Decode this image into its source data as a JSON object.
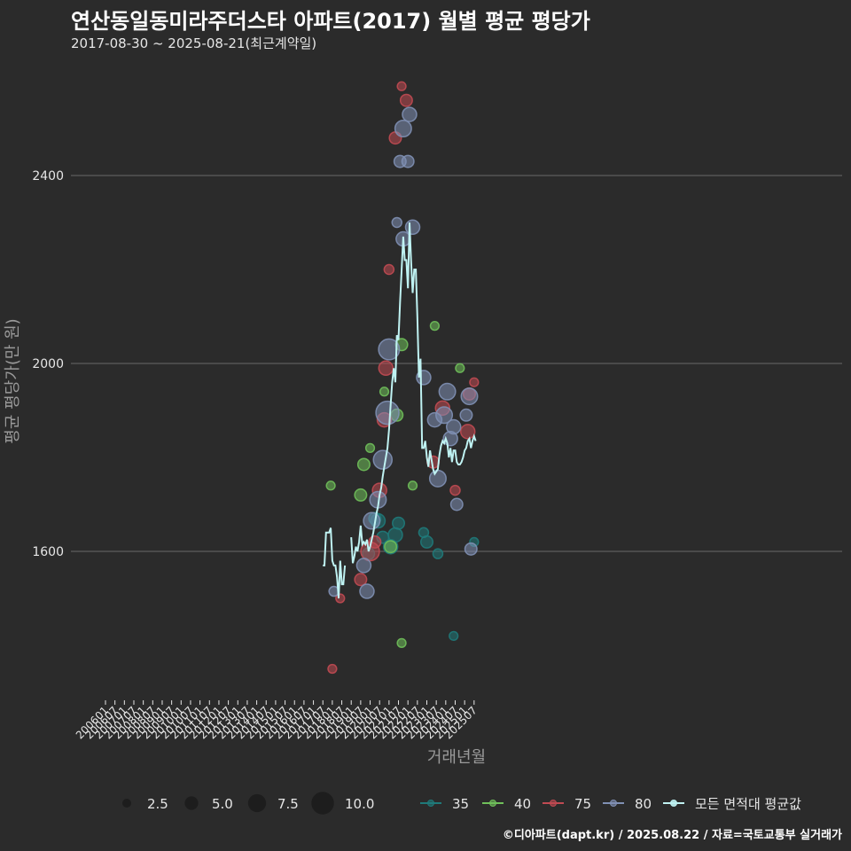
{
  "header": {
    "title": "연산동일동미라주더스타 아파트(2017) 월별 평균 평당가",
    "subtitle": "2017-08-30 ~ 2025-08-21(최근계약일)"
  },
  "footer": {
    "credit": "©디아파트(dapt.kr) / 2025.08.22 / 자료=국토교통부 실거래가"
  },
  "colors": {
    "background": "#2b2b2b",
    "grid": "#6a6a6a",
    "text": "#e6e6e6",
    "axis_title": "#9a9a9a",
    "series": {
      "35": "#1f7a7a",
      "40": "#6fbf5a",
      "75": "#c04a52",
      "80": "#8090b4",
      "avg": "#bff2f2"
    }
  },
  "chart_data": {
    "type": "line",
    "title": "연산동일동미라주더스타 아파트(2017) 월별 평균 평당가",
    "xlabel": "거래년월",
    "ylabel": "평균 평당가(만 원)",
    "ylim": [
      1285,
      2600
    ],
    "yticks": [
      1600,
      2000,
      2400
    ],
    "grid": true,
    "categories": [
      "200601",
      "200607",
      "200701",
      "200707",
      "200801",
      "200807",
      "200901",
      "200907",
      "201001",
      "201007",
      "201101",
      "201107",
      "201201",
      "201207",
      "201301",
      "201307",
      "201401",
      "201407",
      "201501",
      "201507",
      "201601",
      "201607",
      "201701",
      "201707",
      "201801",
      "201807",
      "201901",
      "201907",
      "202001",
      "202007",
      "202101",
      "202107",
      "202201",
      "202207",
      "202301",
      "202307",
      "202401",
      "202407",
      "202501",
      "202507"
    ],
    "legend": {
      "size_title": "",
      "sizes": [
        2.5,
        5.0,
        7.5,
        10.0
      ],
      "size_labels": [
        "2.5",
        "5.0",
        "7.5",
        "10.0"
      ],
      "series": [
        {
          "key": "35",
          "label": "35"
        },
        {
          "key": "40",
          "label": "40"
        },
        {
          "key": "75",
          "label": "75"
        },
        {
          "key": "80",
          "label": "80"
        },
        {
          "key": "avg",
          "label": "모든 면적대 평균값"
        }
      ],
      "position": "bottom"
    },
    "average_line": {
      "name": "모든 면적대 평균값",
      "segments": [
        {
          "x": [
            "2017-07",
            "2017-08",
            "2017-09",
            "2017-10",
            "2017-11",
            "2017-12",
            "2018-01",
            "2018-02",
            "2018-03",
            "2018-04",
            "2018-05",
            "2018-06",
            "2018-07",
            "2018-08",
            "2018-09"
          ],
          "y": [
            1570,
            1570,
            1640,
            1640,
            1640,
            1650,
            1580,
            1570,
            1570,
            1545,
            1500,
            1580,
            1530,
            1530,
            1570
          ]
        },
        {
          "x": [
            "2019-01",
            "2019-02",
            "2019-03",
            "2019-04",
            "2019-05",
            "2019-06",
            "2019-07",
            "2019-08",
            "2019-09",
            "2019-10",
            "2019-11",
            "2019-12",
            "2020-01",
            "2020-02",
            "2020-03",
            "2020-04",
            "2020-05",
            "2020-06",
            "2020-07",
            "2020-08",
            "2020-09",
            "2020-10",
            "2020-11",
            "2020-12",
            "2021-01",
            "2021-02",
            "2021-03",
            "2021-04",
            "2021-05",
            "2021-06",
            "2021-07",
            "2021-08",
            "2021-09",
            "2021-10",
            "2021-11",
            "2021-12",
            "2022-01",
            "2022-02",
            "2022-03",
            "2022-04",
            "2022-05",
            "2022-06",
            "2022-07",
            "2022-08",
            "2022-09",
            "2022-10",
            "2022-11",
            "2022-12",
            "2023-01",
            "2023-02",
            "2023-03",
            "2023-04",
            "2023-05",
            "2023-06",
            "2023-07",
            "2023-08",
            "2023-09",
            "2023-10",
            "2023-11",
            "2023-12",
            "2024-01",
            "2024-02",
            "2024-03",
            "2024-04",
            "2024-05",
            "2024-06",
            "2024-07",
            "2024-08",
            "2024-09",
            "2024-10",
            "2024-11",
            "2024-12",
            "2025-01",
            "2025-02",
            "2025-03",
            "2025-04",
            "2025-05",
            "2025-06",
            "2025-07",
            "2025-08"
          ],
          "y": [
            1630,
            1575,
            1590,
            1610,
            1600,
            1620,
            1655,
            1615,
            1620,
            1615,
            1625,
            1600,
            1610,
            1625,
            1640,
            1660,
            1680,
            1695,
            1720,
            1735,
            1760,
            1780,
            1800,
            1820,
            1860,
            1910,
            1960,
            1990,
            1960,
            2060,
            2050,
            2130,
            2200,
            2270,
            2220,
            2220,
            2160,
            2300,
            2220,
            2150,
            2200,
            2200,
            2100,
            1970,
            2010,
            1820,
            1820,
            1835,
            1800,
            1780,
            1815,
            1795,
            1775,
            1765,
            1770,
            1775,
            1805,
            1825,
            1835,
            1830,
            1840,
            1830,
            1800,
            1820,
            1790,
            1815,
            1815,
            1790,
            1785,
            1785,
            1790,
            1800,
            1815,
            1820,
            1835,
            1840,
            1820,
            1835,
            1845,
            1835
          ]
        }
      ]
    },
    "scatter_series": [
      {
        "name": "35",
        "points": [
          {
            "x": "2019-12",
            "y": 1595,
            "size": 3
          },
          {
            "x": "2020-04",
            "y": 1670,
            "size": 3
          },
          {
            "x": "2020-06",
            "y": 1665,
            "size": 4
          },
          {
            "x": "2020-09",
            "y": 1630,
            "size": 3
          },
          {
            "x": "2021-02",
            "y": 1610,
            "size": 4
          },
          {
            "x": "2021-05",
            "y": 1635,
            "size": 4
          },
          {
            "x": "2021-07",
            "y": 1660,
            "size": 3
          },
          {
            "x": "2022-11",
            "y": 1640,
            "size": 2
          },
          {
            "x": "2023-01",
            "y": 1620,
            "size": 3
          },
          {
            "x": "2023-08",
            "y": 1595,
            "size": 2
          },
          {
            "x": "2024-06",
            "y": 1420,
            "size": 1.5
          },
          {
            "x": "2025-07",
            "y": 1620,
            "size": 1.5
          }
        ]
      },
      {
        "name": "40",
        "points": [
          {
            "x": "2017-12",
            "y": 1740,
            "size": 1.5
          },
          {
            "x": "2019-09",
            "y": 1785,
            "size": 3
          },
          {
            "x": "2019-07",
            "y": 1720,
            "size": 3
          },
          {
            "x": "2020-01",
            "y": 1820,
            "size": 1.5
          },
          {
            "x": "2020-10",
            "y": 1940,
            "size": 1.5
          },
          {
            "x": "2021-02",
            "y": 1610,
            "size": 3
          },
          {
            "x": "2021-06",
            "y": 1890,
            "size": 3
          },
          {
            "x": "2021-09",
            "y": 2040,
            "size": 3
          },
          {
            "x": "2021-09",
            "y": 1405,
            "size": 1.5
          },
          {
            "x": "2022-04",
            "y": 1740,
            "size": 1.5
          },
          {
            "x": "2023-06",
            "y": 2080,
            "size": 1.5
          },
          {
            "x": "2024-10",
            "y": 1990,
            "size": 1.5
          }
        ]
      },
      {
        "name": "75",
        "points": [
          {
            "x": "2018-01",
            "y": 1350,
            "size": 1.5
          },
          {
            "x": "2018-06",
            "y": 1500,
            "size": 1.5
          },
          {
            "x": "2019-07",
            "y": 1540,
            "size": 3
          },
          {
            "x": "2020-01",
            "y": 1600,
            "size": 6
          },
          {
            "x": "2020-04",
            "y": 1620,
            "size": 3
          },
          {
            "x": "2020-07",
            "y": 1730,
            "size": 4
          },
          {
            "x": "2020-10",
            "y": 1880,
            "size": 4
          },
          {
            "x": "2020-11",
            "y": 1990,
            "size": 4
          },
          {
            "x": "2021-01",
            "y": 2200,
            "size": 2
          },
          {
            "x": "2021-05",
            "y": 2480,
            "size": 3
          },
          {
            "x": "2021-09",
            "y": 2590,
            "size": 1.5
          },
          {
            "x": "2021-12",
            "y": 2560,
            "size": 3
          },
          {
            "x": "2023-05",
            "y": 1790,
            "size": 3
          },
          {
            "x": "2023-11",
            "y": 1905,
            "size": 4
          },
          {
            "x": "2024-07",
            "y": 1730,
            "size": 2
          },
          {
            "x": "2025-03",
            "y": 1855,
            "size": 4
          },
          {
            "x": "2025-04",
            "y": 1935,
            "size": 3
          },
          {
            "x": "2025-07",
            "y": 1960,
            "size": 1.5
          }
        ]
      },
      {
        "name": "80",
        "points": [
          {
            "x": "2018-02",
            "y": 1515,
            "size": 2
          },
          {
            "x": "2019-09",
            "y": 1570,
            "size": 4
          },
          {
            "x": "2019-11",
            "y": 1515,
            "size": 4
          },
          {
            "x": "2020-02",
            "y": 1665,
            "size": 5
          },
          {
            "x": "2020-06",
            "y": 1710,
            "size": 5
          },
          {
            "x": "2020-09",
            "y": 1795,
            "size": 6
          },
          {
            "x": "2020-12",
            "y": 1895,
            "size": 8
          },
          {
            "x": "2021-01",
            "y": 2030,
            "size": 7
          },
          {
            "x": "2021-06",
            "y": 2300,
            "size": 2
          },
          {
            "x": "2021-08",
            "y": 2430,
            "size": 3
          },
          {
            "x": "2021-10",
            "y": 2500,
            "size": 5
          },
          {
            "x": "2021-10",
            "y": 2265,
            "size": 4
          },
          {
            "x": "2022-01",
            "y": 2430,
            "size": 3
          },
          {
            "x": "2022-02",
            "y": 2530,
            "size": 4
          },
          {
            "x": "2022-04",
            "y": 2290,
            "size": 4
          },
          {
            "x": "2022-11",
            "y": 1970,
            "size": 4
          },
          {
            "x": "2023-06",
            "y": 1880,
            "size": 4
          },
          {
            "x": "2023-08",
            "y": 1755,
            "size": 5
          },
          {
            "x": "2023-12",
            "y": 1890,
            "size": 5
          },
          {
            "x": "2024-02",
            "y": 1940,
            "size": 5
          },
          {
            "x": "2024-04",
            "y": 1840,
            "size": 4
          },
          {
            "x": "2024-06",
            "y": 1865,
            "size": 4
          },
          {
            "x": "2024-08",
            "y": 1700,
            "size": 3
          },
          {
            "x": "2025-02",
            "y": 1890,
            "size": 3
          },
          {
            "x": "2025-04",
            "y": 1930,
            "size": 5
          },
          {
            "x": "2025-05",
            "y": 1605,
            "size": 3
          }
        ]
      }
    ]
  }
}
